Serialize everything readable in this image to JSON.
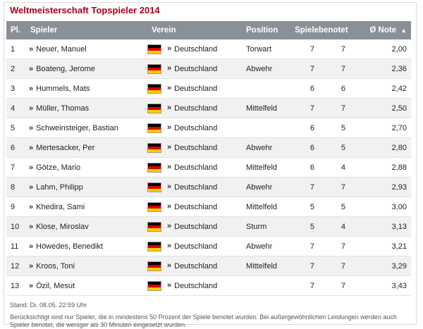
{
  "title": "Weltmeisterschaft Topspieler 2014",
  "columns": {
    "pl": "Pl.",
    "spieler": "Spieler",
    "verein": "Verein",
    "position": "Position",
    "spiele": "Spiele",
    "benotet": "benotet",
    "note": "Ø Note"
  },
  "rows": [
    {
      "pl": "1",
      "name": "Neuer, Manuel",
      "verein": "Deutschland",
      "position": "Torwart",
      "spiele": "7",
      "benotet": "7",
      "note": "2,00"
    },
    {
      "pl": "2",
      "name": "Boateng, Jerome",
      "verein": "Deutschland",
      "position": "Abwehr",
      "spiele": "7",
      "benotet": "7",
      "note": "2,36"
    },
    {
      "pl": "3",
      "name": "Hummels, Mats",
      "verein": "Deutschland",
      "position": "",
      "spiele": "6",
      "benotet": "6",
      "note": "2,42"
    },
    {
      "pl": "4",
      "name": "Müller, Thomas",
      "verein": "Deutschland",
      "position": "Mittelfeld",
      "spiele": "7",
      "benotet": "7",
      "note": "2,50"
    },
    {
      "pl": "5",
      "name": "Schweinsteiger, Bastian",
      "verein": "Deutschland",
      "position": "",
      "spiele": "6",
      "benotet": "5",
      "note": "2,70"
    },
    {
      "pl": "6",
      "name": "Mertesacker, Per",
      "verein": "Deutschland",
      "position": "Abwehr",
      "spiele": "6",
      "benotet": "5",
      "note": "2,80"
    },
    {
      "pl": "7",
      "name": "Götze, Mario",
      "verein": "Deutschland",
      "position": "Mittelfeld",
      "spiele": "6",
      "benotet": "4",
      "note": "2,88"
    },
    {
      "pl": "8",
      "name": "Lahm, Philipp",
      "verein": "Deutschland",
      "position": "Abwehr",
      "spiele": "7",
      "benotet": "7",
      "note": "2,93"
    },
    {
      "pl": "9",
      "name": "Khedira, Sami",
      "verein": "Deutschland",
      "position": "Mittelfeld",
      "spiele": "5",
      "benotet": "5",
      "note": "3,00"
    },
    {
      "pl": "10",
      "name": "Klose, Miroslav",
      "verein": "Deutschland",
      "position": "Sturm",
      "spiele": "5",
      "benotet": "4",
      "note": "3,13"
    },
    {
      "pl": "11",
      "name": "Höwedes, Benedikt",
      "verein": "Deutschland",
      "position": "Abwehr",
      "spiele": "7",
      "benotet": "7",
      "note": "3,21"
    },
    {
      "pl": "12",
      "name": "Kroos, Toni",
      "verein": "Deutschland",
      "position": "Mittelfeld",
      "spiele": "7",
      "benotet": "7",
      "note": "3,29"
    },
    {
      "pl": "13",
      "name": "Özil, Mesut",
      "verein": "Deutschland",
      "position": "",
      "spiele": "7",
      "benotet": "7",
      "note": "3,43"
    }
  ],
  "footer": {
    "stand": "Stand: Di. 08.05. 22:59 Uhr",
    "note": "Berücksichtigt sind nur Spieler, die in mindestens 50 Prozent der Spiele benotet wurden. Bei außergewöhnlichen Leistungen werden auch Spieler benotet, die weniger als 30 Minuten eingesetzt wurden."
  },
  "colors": {
    "title": "#b00016",
    "header_bg": "#8a9096",
    "stripe": "#f1f1f1"
  },
  "icons": {
    "link_marker": "»",
    "sort": "▲",
    "flag": "germany-flag-icon"
  }
}
